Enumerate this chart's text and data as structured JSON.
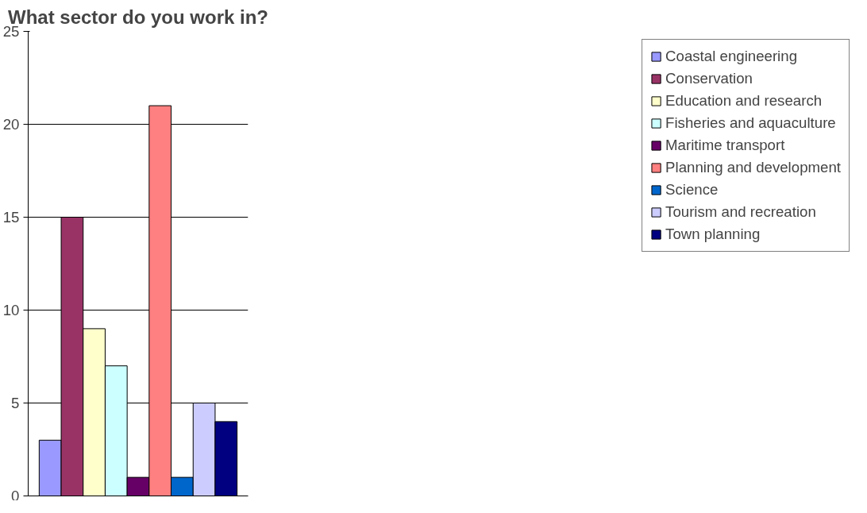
{
  "chart_data": {
    "type": "bar",
    "title": "What sector do you work in?",
    "categories": [
      null
    ],
    "series": [
      {
        "name": "Coastal engineering",
        "color": "#9999ff",
        "values": [
          3
        ]
      },
      {
        "name": "Conservation",
        "color": "#993366",
        "values": [
          15
        ]
      },
      {
        "name": "Education and research",
        "color": "#ffffcc",
        "values": [
          9
        ]
      },
      {
        "name": "Fisheries and aquaculture",
        "color": "#ccffff",
        "values": [
          7
        ]
      },
      {
        "name": "Maritime transport",
        "color": "#660066",
        "values": [
          1
        ]
      },
      {
        "name": "Planning and development",
        "color": "#ff8080",
        "values": [
          21
        ]
      },
      {
        "name": "Science",
        "color": "#0066cc",
        "values": [
          1
        ]
      },
      {
        "name": "Tourism and recreation",
        "color": "#ccccff",
        "values": [
          5
        ]
      },
      {
        "name": "Town planning",
        "color": "#000080",
        "values": [
          4
        ]
      }
    ],
    "ylim": [
      0,
      25
    ],
    "yticks": [
      0,
      5,
      10,
      15,
      20,
      25
    ],
    "grid": "y",
    "legend": "right"
  }
}
